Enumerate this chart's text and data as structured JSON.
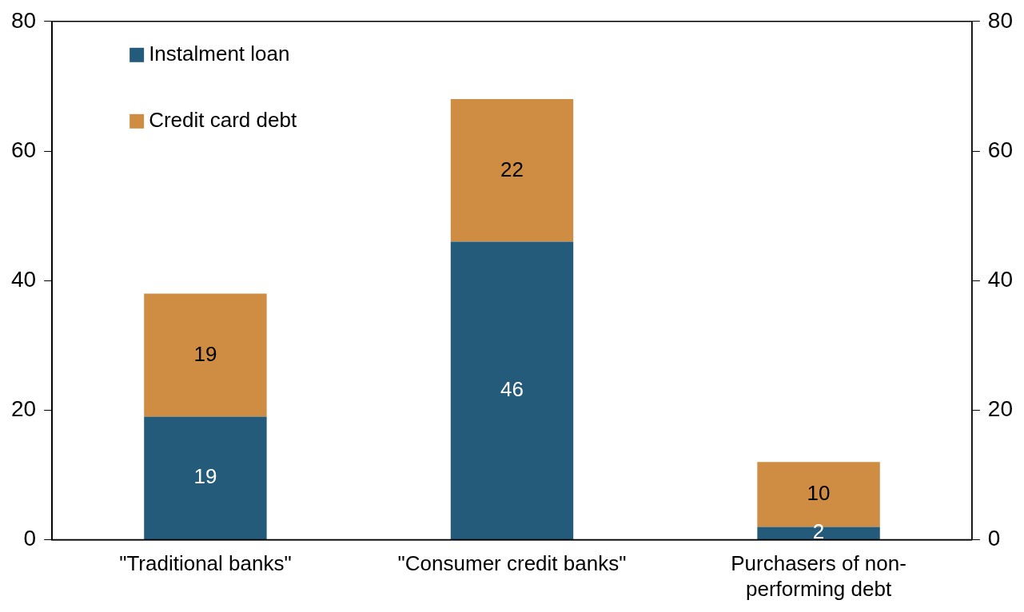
{
  "chart_data": {
    "type": "bar",
    "stacked": true,
    "categories": [
      "\"Traditional banks\"",
      "\"Consumer credit banks\"",
      "Purchasers of non-performing debt"
    ],
    "series": [
      {
        "name": "Instalment loan",
        "color": "#245b7a",
        "values": [
          19,
          46,
          2
        ]
      },
      {
        "name": "Credit card debt",
        "color": "#cf8c43",
        "values": [
          19,
          22,
          10
        ]
      }
    ],
    "ylim": [
      0,
      80
    ],
    "yticks": [
      0,
      20,
      40,
      60,
      80
    ],
    "y2lim": [
      0,
      80
    ],
    "y2ticks": [
      0,
      20,
      40,
      60,
      80
    ],
    "data_labels": true,
    "legend": "top left",
    "grid": false
  }
}
